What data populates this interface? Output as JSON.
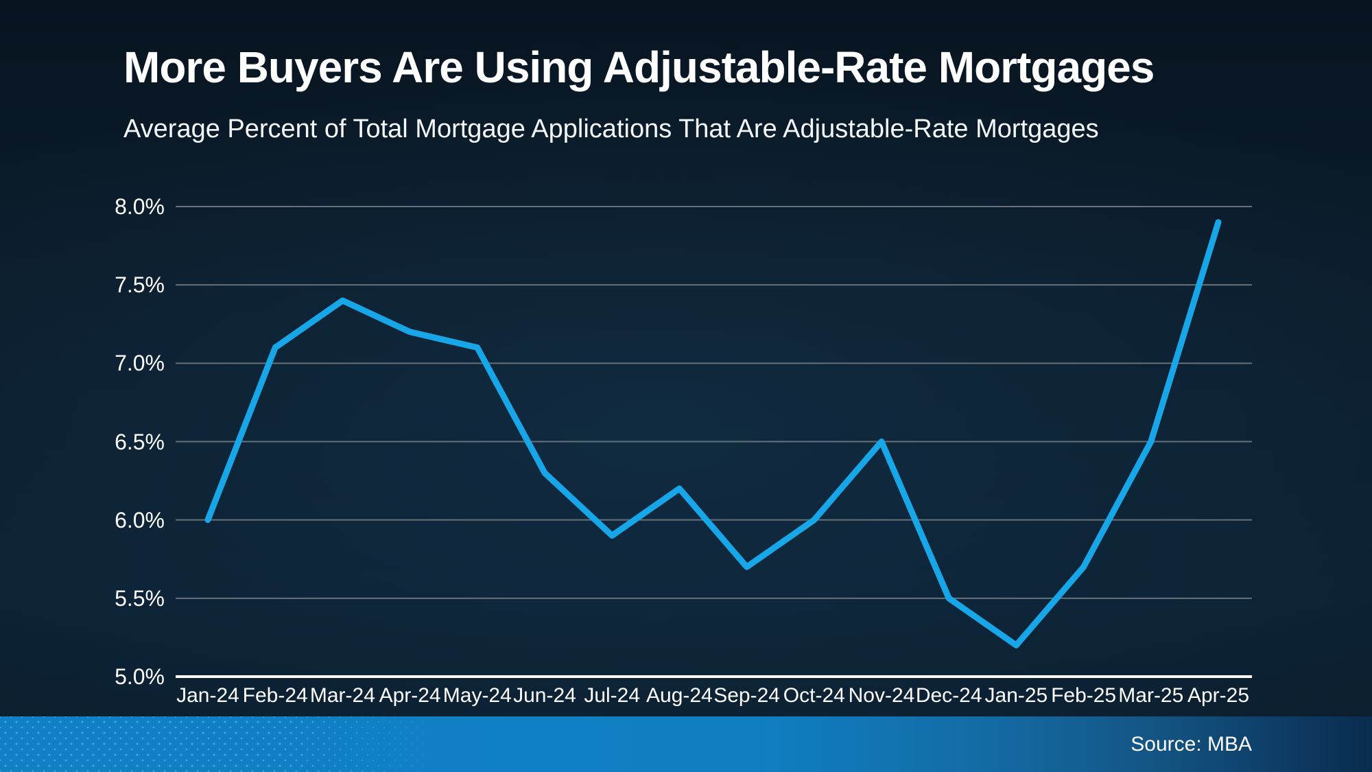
{
  "chart_data": {
    "type": "line",
    "title": "More Buyers Are Using Adjustable-Rate Mortgages",
    "subtitle": "Average Percent of Total Mortgage Applications That Are Adjustable-Rate Mortgages",
    "categories": [
      "Jan-24",
      "Feb-24",
      "Mar-24",
      "Apr-24",
      "May-24",
      "Jun-24",
      "Jul-24",
      "Aug-24",
      "Sep-24",
      "Oct-24",
      "Nov-24",
      "Dec-24",
      "Jan-25",
      "Feb-25",
      "Mar-25",
      "Apr-25"
    ],
    "values": [
      6.0,
      7.1,
      7.4,
      7.2,
      7.1,
      6.3,
      5.9,
      6.2,
      5.7,
      6.0,
      6.5,
      5.5,
      5.2,
      5.7,
      6.5,
      7.9
    ],
    "xlabel": "",
    "ylabel": "",
    "ylim": [
      5.0,
      8.0
    ],
    "ytick_values": [
      5.0,
      5.5,
      6.0,
      6.5,
      7.0,
      7.5,
      8.0
    ],
    "ytick_labels": [
      "5.0%",
      "5.5%",
      "6.0%",
      "6.5%",
      "7.0%",
      "7.5%",
      "8.0%"
    ],
    "grid": true,
    "legend": false
  },
  "footer": {
    "source": "Source: MBA"
  },
  "colors": {
    "line": "#17a6e8",
    "grid": "#66717a",
    "axis": "#ffffff",
    "text": "#ffffff",
    "background": "#0c2133",
    "footer_left": "#1081c5",
    "footer_right": "#092c4e"
  }
}
